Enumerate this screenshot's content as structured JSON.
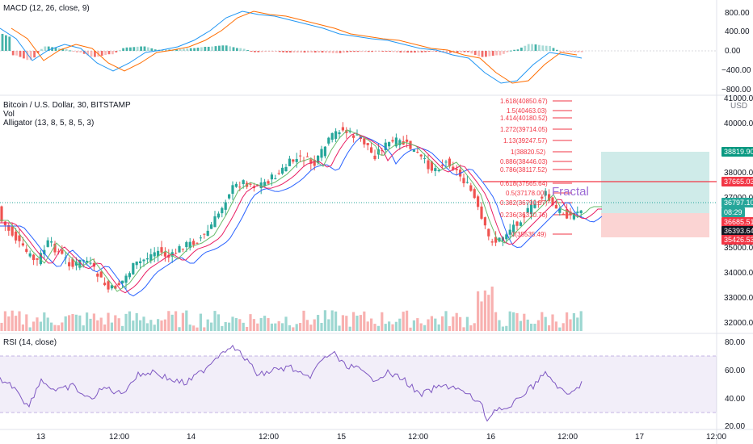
{
  "panes": {
    "macd": {
      "title": "MACD (12, 26, close, 9)",
      "axis": [
        "800.00",
        "400.00",
        "0.00",
        "−400.00",
        "−800.00"
      ]
    },
    "price": {
      "title": "Bitcoin / U.S. Dollar, 30, BITSTAMP",
      "vol_label": "Vol",
      "alligator_label": "Alligator (13, 8, 5, 8, 5, 3)",
      "currency": "USD",
      "axis": [
        "41000.00",
        "40000.00",
        "38000.00",
        "37000.00",
        "35000.00",
        "34000.00",
        "33000.00",
        "32000.00"
      ],
      "tags": {
        "target": "38819.90",
        "level": "37665.03",
        "price": "36797.10",
        "countdown": "08:29",
        "entry": "36685.51",
        "last": "36393.64",
        "stop": "35426.53"
      }
    },
    "rsi": {
      "title": "RSI (14, close)",
      "axis": [
        "80.00",
        "60.00",
        "40.00",
        "20.00"
      ]
    }
  },
  "fib_levels": [
    "1.618(40850.67)",
    "1.5(40463.03)",
    "1.414(40180.52)",
    "1.272(39714.05)",
    "1.13(39247.57)",
    "1(38820.52)",
    "0.886(38446.03)",
    "0.786(38117.52)",
    "0.618(37565.64)",
    "0.5(37178.00)",
    "0.382(36790.37)",
    "0.236(36310.76)",
    "0(35535.49)"
  ],
  "annotation": "Fractal",
  "time_axis": [
    "13",
    "12:00",
    "14",
    "12:00",
    "15",
    "12:00",
    "16",
    "12:00",
    "17",
    "12:00"
  ],
  "colors": {
    "up": "#26a69a",
    "down": "#ef5350",
    "macd": "#2196f3",
    "signal": "#ff6d00",
    "rsi": "#7e57c2",
    "fractal": "#9c6bd6"
  }
}
